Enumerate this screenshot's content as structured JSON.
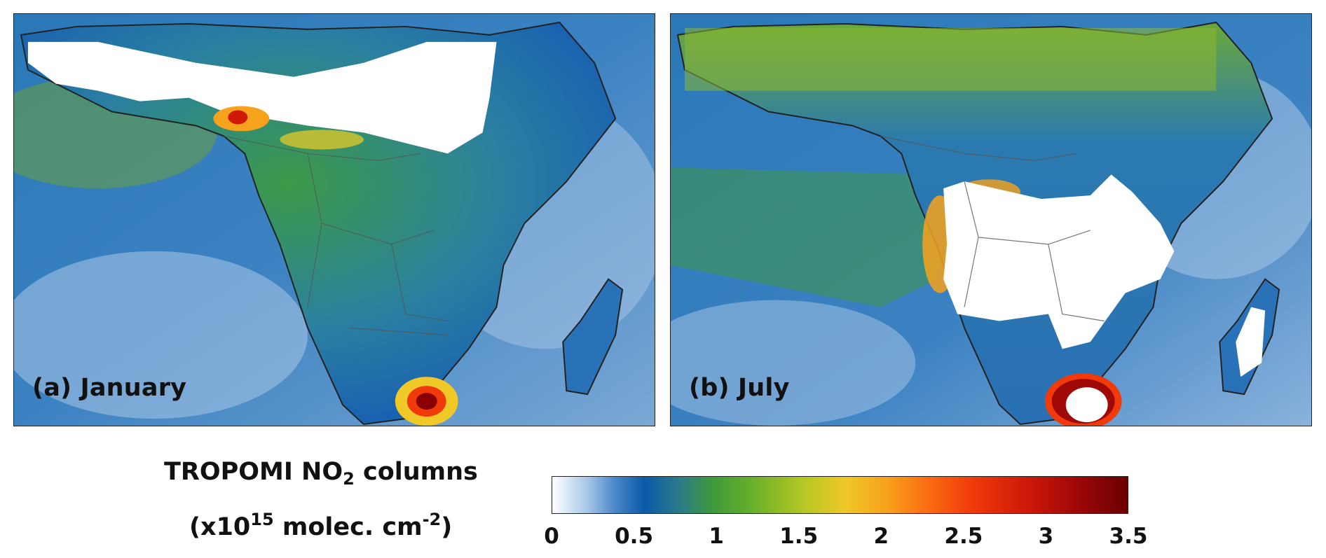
{
  "panels": [
    {
      "label": "(a) January"
    },
    {
      "label": "(b) July"
    }
  ],
  "colorbar": {
    "title_line1_prefix": "TROPOMI NO",
    "title_line1_sub": "2",
    "title_line1_suffix": " columns",
    "title_line2_prefix": "(x10",
    "title_line2_sup1": "15",
    "title_line2_mid": " molec. cm",
    "title_line2_sup2": "-2",
    "title_line2_suffix": ")",
    "ticks": [
      "0",
      "0.5",
      "1",
      "1.5",
      "2",
      "2.5",
      "3",
      "3.5"
    ],
    "range": [
      0,
      3.5
    ],
    "colors": [
      "#ffffff",
      "#0a5aa8",
      "#3f9a3a",
      "#f0c828",
      "#fb6e12",
      "#d01a08",
      "#6a0000"
    ]
  }
}
